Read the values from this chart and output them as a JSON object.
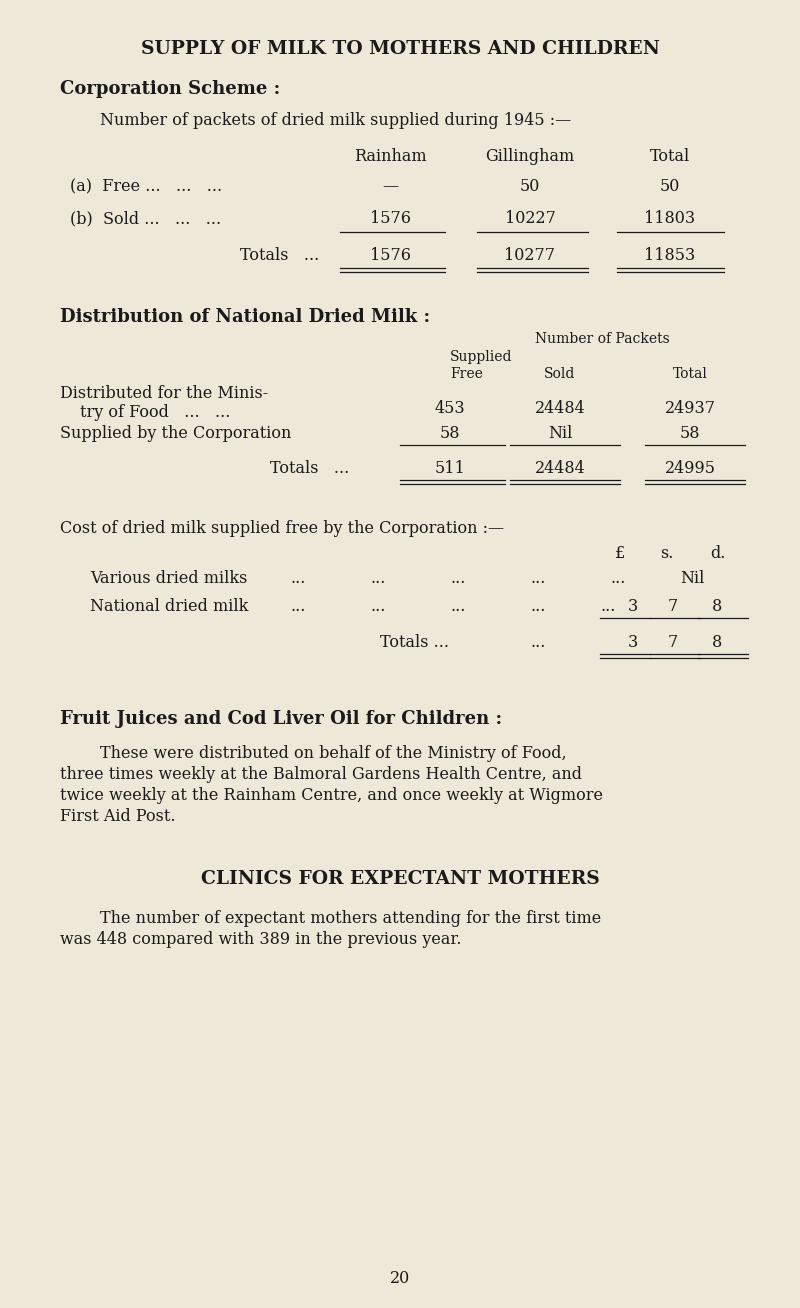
{
  "bg_color": "#ede8d8",
  "text_color": "#1a1a1a",
  "title": "SUPPLY OF MILK TO MOTHERS AND CHILDREN",
  "section1_heading": "Corporation Scheme :",
  "section1_subheading": "Number of packets of dried milk supplied during 1945 :—",
  "page_number": "20"
}
